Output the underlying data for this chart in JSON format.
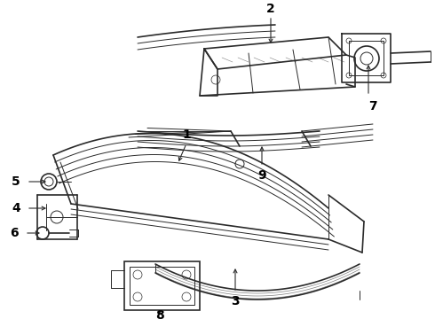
{
  "background_color": "#ffffff",
  "line_color": "#2a2a2a",
  "label_color": "#000000",
  "figsize": [
    4.9,
    3.6
  ],
  "dpi": 100,
  "label_fontsize": 9
}
